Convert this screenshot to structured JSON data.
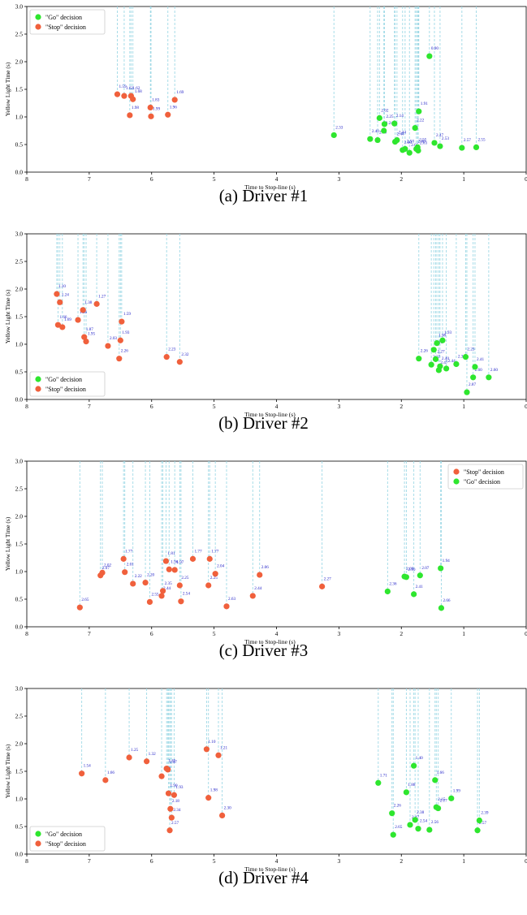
{
  "figure": {
    "panels": [
      {
        "caption": "(a) Driver #1"
      },
      {
        "caption": "(b) Driver #2"
      },
      {
        "caption": "(c) Driver #3"
      },
      {
        "caption": "(d) Driver #4"
      }
    ]
  },
  "colors": {
    "go": "#2ee62e",
    "stop": "#f0603c",
    "dash": "#9fd9e6",
    "annotation": "#2020c8",
    "axis": "#000000"
  },
  "chart_data": [
    {
      "type": "scatter",
      "title": "",
      "xlabel": "Time to Stop-line (s)",
      "ylabel": "Yellow Light Time (s)",
      "xlim": [
        8,
        0
      ],
      "ylim": [
        0,
        3.0
      ],
      "x_ticks": [
        "8",
        "7",
        "6",
        "5",
        "4",
        "3",
        "2",
        "1",
        "0"
      ],
      "y_ticks": [
        "0.0",
        "0.5",
        "1.0",
        "1.5",
        "2.0",
        "2.5",
        "3.0"
      ],
      "legend": {
        "position": "top-left",
        "order": [
          "go",
          "stop"
        ],
        "labels": {
          "go": "\"Go\" decision",
          "stop": "\"Stop\" decision"
        }
      },
      "series": [
        {
          "name": "\"Go\" decision",
          "key": "go",
          "points": [
            {
              "x": 3.08,
              "y": 0.67,
              "label": "2.33"
            },
            {
              "x": 2.5,
              "y": 0.6,
              "label": "2.40"
            },
            {
              "x": 2.38,
              "y": 0.58,
              "label": "2.40"
            },
            {
              "x": 2.35,
              "y": 0.98,
              "label": "2.02"
            },
            {
              "x": 2.28,
              "y": 0.75,
              "label": "2.24"
            },
            {
              "x": 2.27,
              "y": 0.87,
              "label": "2.25"
            },
            {
              "x": 2.11,
              "y": 0.88,
              "label": "2.14"
            },
            {
              "x": 2.1,
              "y": 0.55,
              "label": "2.44"
            },
            {
              "x": 2.07,
              "y": 0.58,
              "label": "2.44"
            },
            {
              "x": 1.98,
              "y": 0.4,
              "label": "2.60"
            },
            {
              "x": 1.94,
              "y": 0.42,
              "label": "2.50"
            },
            {
              "x": 1.87,
              "y": 0.35,
              "label": "2.65"
            },
            {
              "x": 1.78,
              "y": 0.8,
              "label": "2.22"
            },
            {
              "x": 1.76,
              "y": 0.42,
              "label": "2.60"
            },
            {
              "x": 1.74,
              "y": 0.45,
              "label": "2.55"
            },
            {
              "x": 1.73,
              "y": 0.39,
              "label": "2.63"
            },
            {
              "x": 1.72,
              "y": 1.1,
              "label": "1.91"
            },
            {
              "x": 1.55,
              "y": 2.1,
              "label": "0.90"
            },
            {
              "x": 1.47,
              "y": 0.53,
              "label": "2.47"
            },
            {
              "x": 1.38,
              "y": 0.47,
              "label": "2.53"
            },
            {
              "x": 1.03,
              "y": 0.44,
              "label": "2.57"
            },
            {
              "x": 0.8,
              "y": 0.45,
              "label": "2.55"
            }
          ]
        },
        {
          "name": "\"Stop\" decision",
          "key": "stop",
          "points": [
            {
              "x": 6.55,
              "y": 1.41,
              "label": "1.59"
            },
            {
              "x": 6.44,
              "y": 1.38,
              "label": "1.62"
            },
            {
              "x": 6.35,
              "y": 1.03,
              "label": "1.98"
            },
            {
              "x": 6.33,
              "y": 1.38,
              "label": "1.62"
            },
            {
              "x": 6.3,
              "y": 1.32,
              "label": "1.68"
            },
            {
              "x": 6.02,
              "y": 1.17,
              "label": "1.83"
            },
            {
              "x": 6.01,
              "y": 1.01,
              "label": "1.99"
            },
            {
              "x": 5.74,
              "y": 1.04,
              "label": "1.96"
            },
            {
              "x": 5.63,
              "y": 1.31,
              "label": "1.69"
            }
          ]
        }
      ]
    },
    {
      "type": "scatter",
      "title": "",
      "xlabel": "Time to Stop-line (s)",
      "ylabel": "Yellow Light Time (s)",
      "xlim": [
        8,
        0
      ],
      "ylim": [
        0,
        3.0
      ],
      "x_ticks": [
        "8",
        "7",
        "6",
        "5",
        "4",
        "3",
        "2",
        "1",
        "0"
      ],
      "y_ticks": [
        "0.0",
        "0.5",
        "1.0",
        "1.5",
        "2.0",
        "2.5",
        "3.0"
      ],
      "legend": {
        "position": "bottom-left",
        "order": [
          "go",
          "stop"
        ],
        "labels": {
          "go": "\"Go\" decision",
          "stop": "\"Stop\" decision"
        }
      },
      "series": [
        {
          "name": "\"Go\" decision",
          "key": "go",
          "points": [
            {
              "x": 1.72,
              "y": 0.74,
              "label": "2.26"
            },
            {
              "x": 1.52,
              "y": 0.63,
              "label": "2.37"
            },
            {
              "x": 1.48,
              "y": 0.9,
              "label": "2.10"
            },
            {
              "x": 1.45,
              "y": 0.73,
              "label": "2.27"
            },
            {
              "x": 1.43,
              "y": 1.02,
              "label": "1.98"
            },
            {
              "x": 1.4,
              "y": 0.53,
              "label": "2.47"
            },
            {
              "x": 1.38,
              "y": 0.6,
              "label": "2.40"
            },
            {
              "x": 1.34,
              "y": 1.07,
              "label": "1.93"
            },
            {
              "x": 1.28,
              "y": 0.56,
              "label": "2.44"
            },
            {
              "x": 1.12,
              "y": 0.64,
              "label": "2.36"
            },
            {
              "x": 0.97,
              "y": 0.77,
              "label": "2.23"
            },
            {
              "x": 0.95,
              "y": 0.13,
              "label": "2.87"
            },
            {
              "x": 0.85,
              "y": 0.4,
              "label": "2.60"
            },
            {
              "x": 0.82,
              "y": 0.59,
              "label": "2.41"
            },
            {
              "x": 0.6,
              "y": 0.4,
              "label": "2.60"
            }
          ]
        },
        {
          "name": "\"Stop\" decision",
          "key": "stop",
          "points": [
            {
              "x": 7.52,
              "y": 1.91,
              "label": "1.10"
            },
            {
              "x": 7.5,
              "y": 1.35,
              "label": "1.66"
            },
            {
              "x": 7.47,
              "y": 1.76,
              "label": "1.24"
            },
            {
              "x": 7.43,
              "y": 1.31,
              "label": "1.69"
            },
            {
              "x": 7.18,
              "y": 1.44,
              "label": "1.56"
            },
            {
              "x": 7.1,
              "y": 1.62,
              "label": "1.38"
            },
            {
              "x": 7.08,
              "y": 1.13,
              "label": "1.87"
            },
            {
              "x": 7.05,
              "y": 1.05,
              "label": "1.95"
            },
            {
              "x": 6.88,
              "y": 1.73,
              "label": "1.27"
            },
            {
              "x": 6.7,
              "y": 0.97,
              "label": "2.03"
            },
            {
              "x": 6.52,
              "y": 0.74,
              "label": "2.26"
            },
            {
              "x": 6.5,
              "y": 1.07,
              "label": "1.93"
            },
            {
              "x": 6.48,
              "y": 1.41,
              "label": "1.59"
            },
            {
              "x": 5.76,
              "y": 0.77,
              "label": "2.23"
            },
            {
              "x": 5.55,
              "y": 0.68,
              "label": "2.32"
            }
          ]
        }
      ]
    },
    {
      "type": "scatter",
      "title": "",
      "xlabel": "Time to Stop-line (s)",
      "ylabel": "Yellow Light Time (s)",
      "xlim": [
        8,
        0
      ],
      "ylim": [
        0,
        3.0
      ],
      "x_ticks": [
        "8",
        "7",
        "6",
        "5",
        "4",
        "3",
        "2",
        "1",
        "0"
      ],
      "y_ticks": [
        "0.0",
        "0.5",
        "1.0",
        "1.5",
        "2.0",
        "2.5",
        "3.0"
      ],
      "legend": {
        "position": "top-right",
        "order": [
          "stop",
          "go"
        ],
        "labels": {
          "go": "\"Go\" decision",
          "stop": "\"Stop\" decision"
        }
      },
      "series": [
        {
          "name": "\"Go\" decision",
          "key": "go",
          "points": [
            {
              "x": 2.22,
              "y": 0.64,
              "label": "2.36"
            },
            {
              "x": 1.95,
              "y": 0.91,
              "label": "2.09"
            },
            {
              "x": 1.92,
              "y": 0.9,
              "label": "2.10"
            },
            {
              "x": 1.8,
              "y": 0.59,
              "label": "2.41"
            },
            {
              "x": 1.7,
              "y": 0.93,
              "label": "2.07"
            },
            {
              "x": 1.37,
              "y": 1.06,
              "label": "1.94"
            },
            {
              "x": 1.36,
              "y": 0.34,
              "label": "2.66"
            }
          ]
        },
        {
          "name": "\"Stop\" decision",
          "key": "stop",
          "points": [
            {
              "x": 7.15,
              "y": 0.35,
              "label": "2.65"
            },
            {
              "x": 6.82,
              "y": 0.93,
              "label": "2.07"
            },
            {
              "x": 6.79,
              "y": 0.98,
              "label": "2.02"
            },
            {
              "x": 6.45,
              "y": 1.23,
              "label": "1.77"
            },
            {
              "x": 6.43,
              "y": 0.99,
              "label": "2.01"
            },
            {
              "x": 6.3,
              "y": 0.78,
              "label": "2.22"
            },
            {
              "x": 6.1,
              "y": 0.8,
              "label": "2.20"
            },
            {
              "x": 6.03,
              "y": 0.45,
              "label": "2.55"
            },
            {
              "x": 5.84,
              "y": 0.56,
              "label": "2.44"
            },
            {
              "x": 5.82,
              "y": 0.65,
              "label": "2.35"
            },
            {
              "x": 5.77,
              "y": 1.19,
              "label": "1.81"
            },
            {
              "x": 5.72,
              "y": 1.04,
              "label": "1.96"
            },
            {
              "x": 5.63,
              "y": 1.03,
              "label": "1.97"
            },
            {
              "x": 5.55,
              "y": 0.75,
              "label": "2.25"
            },
            {
              "x": 5.53,
              "y": 0.46,
              "label": "2.54"
            },
            {
              "x": 5.34,
              "y": 1.23,
              "label": "1.77"
            },
            {
              "x": 5.09,
              "y": 0.75,
              "label": "2.25"
            },
            {
              "x": 5.07,
              "y": 1.23,
              "label": "1.77"
            },
            {
              "x": 4.98,
              "y": 0.96,
              "label": "2.04"
            },
            {
              "x": 4.8,
              "y": 0.37,
              "label": "2.63"
            },
            {
              "x": 4.38,
              "y": 0.56,
              "label": "2.44"
            },
            {
              "x": 4.27,
              "y": 0.94,
              "label": "2.06"
            },
            {
              "x": 3.27,
              "y": 0.73,
              "label": "2.27"
            }
          ]
        }
      ]
    },
    {
      "type": "scatter",
      "title": "",
      "xlabel": "Time to Stop-line (s)",
      "ylabel": "Yellow Light Time (s)",
      "xlim": [
        8,
        0
      ],
      "ylim": [
        0,
        3.0
      ],
      "x_ticks": [
        "8",
        "7",
        "6",
        "5",
        "4",
        "3",
        "2",
        "1",
        "0"
      ],
      "y_ticks": [
        "0.0",
        "0.5",
        "1.0",
        "1.5",
        "2.0",
        "2.5",
        "3.0"
      ],
      "legend": {
        "position": "bottom-left",
        "order": [
          "go",
          "stop"
        ],
        "labels": {
          "go": "\"Go\" decision",
          "stop": "\"Stop\" decision"
        }
      },
      "series": [
        {
          "name": "\"Go\" decision",
          "key": "go",
          "points": [
            {
              "x": 2.37,
              "y": 1.29,
              "label": "1.71"
            },
            {
              "x": 2.15,
              "y": 0.74,
              "label": "2.26"
            },
            {
              "x": 2.13,
              "y": 0.35,
              "label": "2.65"
            },
            {
              "x": 1.92,
              "y": 1.12,
              "label": "1.88"
            },
            {
              "x": 1.86,
              "y": 0.53,
              "label": "2.47"
            },
            {
              "x": 1.8,
              "y": 1.6,
              "label": "1.40"
            },
            {
              "x": 1.78,
              "y": 0.62,
              "label": "2.38"
            },
            {
              "x": 1.73,
              "y": 0.46,
              "label": "2.54"
            },
            {
              "x": 1.55,
              "y": 0.44,
              "label": "2.56"
            },
            {
              "x": 1.46,
              "y": 1.34,
              "label": "1.66"
            },
            {
              "x": 1.44,
              "y": 0.85,
              "label": "2.15"
            },
            {
              "x": 1.41,
              "y": 0.83,
              "label": "2.17"
            },
            {
              "x": 1.2,
              "y": 1.01,
              "label": "1.99"
            },
            {
              "x": 0.78,
              "y": 0.43,
              "label": "2.57"
            },
            {
              "x": 0.75,
              "y": 0.61,
              "label": "2.39"
            }
          ]
        },
        {
          "name": "\"Stop\" decision",
          "key": "stop",
          "points": [
            {
              "x": 7.12,
              "y": 1.46,
              "label": "1.54"
            },
            {
              "x": 6.74,
              "y": 1.34,
              "label": "1.66"
            },
            {
              "x": 6.36,
              "y": 1.75,
              "label": "1.25"
            },
            {
              "x": 6.08,
              "y": 1.68,
              "label": "1.32"
            },
            {
              "x": 5.84,
              "y": 1.41,
              "label": "1.59"
            },
            {
              "x": 5.76,
              "y": 1.55,
              "label": "1.45"
            },
            {
              "x": 5.74,
              "y": 1.53,
              "label": "1.47"
            },
            {
              "x": 5.73,
              "y": 1.1,
              "label": "1.90"
            },
            {
              "x": 5.71,
              "y": 0.43,
              "label": "2.57"
            },
            {
              "x": 5.7,
              "y": 0.82,
              "label": "2.18"
            },
            {
              "x": 5.68,
              "y": 0.66,
              "label": "2.34"
            },
            {
              "x": 5.64,
              "y": 1.07,
              "label": "1.93"
            },
            {
              "x": 5.12,
              "y": 1.9,
              "label": "1.10"
            },
            {
              "x": 5.09,
              "y": 1.02,
              "label": "1.98"
            },
            {
              "x": 4.93,
              "y": 1.79,
              "label": "1.21"
            },
            {
              "x": 4.87,
              "y": 0.7,
              "label": "2.30"
            }
          ]
        }
      ]
    }
  ]
}
